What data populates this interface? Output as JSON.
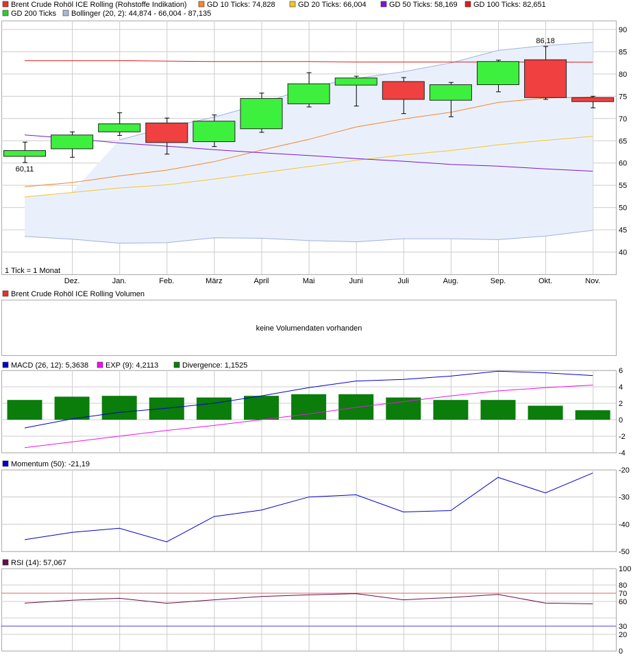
{
  "legends": {
    "price": [
      {
        "label": "Brent Crude Rohöl ICE Rolling (Rohstoffe Indikation)",
        "color": "#e5302f"
      },
      {
        "label": "GD 10 Ticks: 74,828",
        "color": "#f5862b"
      },
      {
        "label": "GD 20 Ticks: 66,004",
        "color": "#f2c42e"
      },
      {
        "label": "GD 50 Ticks: 58,169",
        "color": "#7a16d1"
      },
      {
        "label": "GD 100 Ticks: 82,651",
        "color": "#e11b1b"
      },
      {
        "label": "GD 200 Ticks",
        "color": "#2ecc2e"
      },
      {
        "label": "Bollinger (20, 2): 44,874 - 66,004 - 87,135",
        "color": "#a9b9d8"
      }
    ],
    "volume": [
      {
        "label": "Brent Crude Rohöl ICE Rolling Volumen",
        "color": "#e5302f"
      }
    ],
    "macd": [
      {
        "label": "MACD (26, 12): 5,3638",
        "color": "#0000cc"
      },
      {
        "label": "EXP (9): 4,2113",
        "color": "#ee10ee"
      },
      {
        "label": "Divergence: 1,1525",
        "color": "#0a7d0a"
      }
    ],
    "momentum": [
      {
        "label": "Momentum (50): -21,19",
        "color": "#0000cc"
      }
    ],
    "rsi": [
      {
        "label": "RSI (14): 57,067",
        "color": "#6a0a4a"
      }
    ]
  },
  "tick_note": "1 Tick = 1 Monat",
  "volume_message": "keine Volumendaten vorhanden",
  "price_high_label": "86,18",
  "price_low_label": "60,11",
  "colors": {
    "up": "#3ef03e",
    "down": "#f04040",
    "band_fill": "#eaf0fb",
    "band_line": "#9fb2dd",
    "gd10": "#f5862b",
    "gd20": "#f2c42e",
    "gd50": "#7a16d1",
    "gd100": "#e11b1b",
    "macd": "#0000cc",
    "exp": "#ee10ee",
    "divergence": "#0a7d0a",
    "momentum": "#0000cc",
    "rsi": "#6a0a4a",
    "rsi_upper": "#e06060",
    "rsi_lower": "#4040e0",
    "grid": "#cccccc"
  },
  "chart_data": [
    {
      "type": "candlestick",
      "categories": [
        "",
        "Dez.",
        "Jan.",
        "Feb.",
        "März",
        "April",
        "Mai",
        "Juni",
        "Juli",
        "Aug.",
        "Sep.",
        "Okt.",
        "Nov."
      ],
      "ylim": [
        35,
        92
      ],
      "yticks": [
        40,
        45,
        50,
        55,
        60,
        65,
        70,
        75,
        80,
        85,
        90
      ],
      "candles": [
        {
          "open": 61.5,
          "close": 62.8,
          "high": 64.7,
          "low": 60.11
        },
        {
          "open": 63.2,
          "close": 66.3,
          "high": 67.0,
          "low": 61.3
        },
        {
          "open": 67.0,
          "close": 68.8,
          "high": 71.3,
          "low": 66.2
        },
        {
          "open": 69.0,
          "close": 64.6,
          "high": 70.1,
          "low": 62.0
        },
        {
          "open": 64.8,
          "close": 69.4,
          "high": 70.8,
          "low": 63.7
        },
        {
          "open": 67.7,
          "close": 74.5,
          "high": 75.7,
          "low": 66.9
        },
        {
          "open": 73.3,
          "close": 77.8,
          "high": 80.3,
          "low": 72.6
        },
        {
          "open": 77.5,
          "close": 79.1,
          "high": 79.5,
          "low": 72.8
        },
        {
          "open": 78.3,
          "close": 74.3,
          "high": 79.2,
          "low": 71.1
        },
        {
          "open": 74.1,
          "close": 77.6,
          "high": 78.1,
          "low": 70.4
        },
        {
          "open": 77.6,
          "close": 82.8,
          "high": 83.1,
          "low": 76.0
        },
        {
          "open": 83.2,
          "close": 74.7,
          "high": 86.18,
          "low": 74.3
        },
        {
          "open": 74.7,
          "close": 73.8,
          "high": 75.0,
          "low": 72.4
        }
      ],
      "series": [
        {
          "name": "GD 10 Ticks",
          "values": [
            54.7,
            55.6,
            57.1,
            58.4,
            60.3,
            62.9,
            65.3,
            68.1,
            69.9,
            71.4,
            73.6,
            74.6,
            74.828
          ]
        },
        {
          "name": "GD 20 Ticks",
          "values": [
            52.4,
            53.4,
            54.4,
            55.1,
            56.4,
            57.8,
            59.2,
            60.6,
            61.8,
            62.8,
            64.1,
            65.1,
            66.004
          ]
        },
        {
          "name": "GD 50 Ticks",
          "values": [
            66.3,
            65.5,
            64.5,
            63.8,
            63.0,
            62.3,
            61.7,
            61.0,
            60.4,
            59.7,
            59.3,
            58.7,
            58.169
          ]
        },
        {
          "name": "GD 100 Ticks",
          "values": [
            83.0,
            83.0,
            83.0,
            82.9,
            82.8,
            82.8,
            82.8,
            82.7,
            82.7,
            82.7,
            82.7,
            82.7,
            82.651
          ]
        }
      ],
      "bollinger": {
        "upper": [
          null,
          null,
          65.2,
          68.0,
          70.3,
          73.3,
          77.0,
          79.0,
          80.5,
          82.5,
          85.3,
          86.4,
          87.135
        ],
        "lower": [
          43.5,
          42.9,
          42.0,
          42.1,
          43.2,
          43.1,
          42.6,
          42.3,
          43.0,
          43.0,
          42.8,
          43.6,
          44.874
        ]
      }
    },
    {
      "type": "bar+line",
      "ylim": [
        -4,
        6
      ],
      "yticks": [
        -4,
        -2,
        0,
        2,
        4,
        6
      ],
      "series": [
        {
          "name": "MACD (26, 12)",
          "values": [
            -1.0,
            0.1,
            0.9,
            1.4,
            2.0,
            2.9,
            3.9,
            4.7,
            4.9,
            5.3,
            5.9,
            5.7,
            5.3638
          ]
        },
        {
          "name": "EXP (9)",
          "values": [
            -3.4,
            -2.7,
            -2.0,
            -1.3,
            -0.7,
            0.0,
            0.7,
            1.5,
            2.2,
            2.9,
            3.5,
            3.9,
            4.2113
          ]
        },
        {
          "name": "Divergence",
          "values": [
            2.4,
            2.8,
            2.9,
            2.7,
            2.7,
            2.9,
            3.1,
            3.1,
            2.7,
            2.4,
            2.4,
            1.7,
            1.1525
          ]
        }
      ]
    },
    {
      "type": "line",
      "ylim": [
        -50,
        -20
      ],
      "yticks": [
        -50,
        -40,
        -30,
        -20
      ],
      "series": [
        {
          "name": "Momentum (50)",
          "values": [
            -45.7,
            -43.0,
            -41.5,
            -46.5,
            -37.2,
            -34.8,
            -30.0,
            -29.2,
            -35.5,
            -35.0,
            -22.8,
            -28.5,
            -21.19
          ]
        }
      ]
    },
    {
      "type": "line",
      "ylim": [
        0,
        100
      ],
      "yticks": [
        0,
        20,
        30,
        60,
        70,
        80,
        100
      ],
      "reference_lines": [
        70,
        30
      ],
      "series": [
        {
          "name": "RSI (14)",
          "values": [
            58.0,
            61.5,
            63.8,
            57.8,
            62.0,
            66.0,
            68.0,
            69.5,
            62.0,
            64.8,
            68.5,
            58.0,
            57.067
          ]
        }
      ]
    }
  ]
}
